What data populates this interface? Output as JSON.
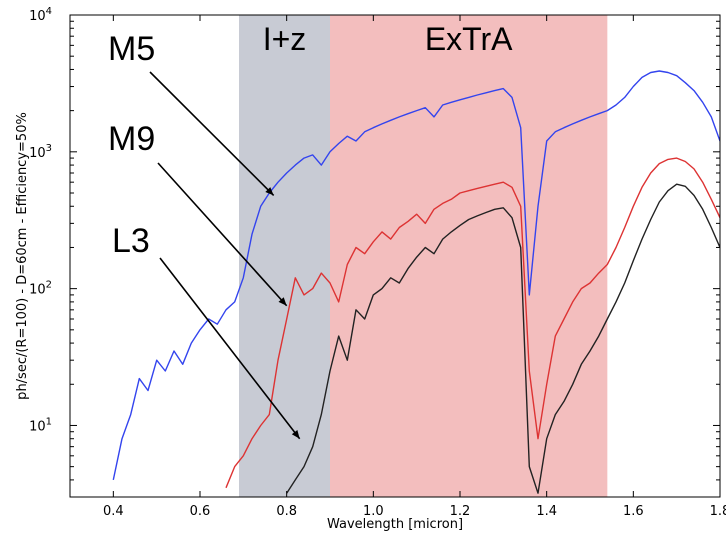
{
  "chart_data": {
    "type": "line",
    "title": "",
    "xlabel": "Wavelength [micron]",
    "ylabel": "ph/sec/(R=100) - D=60cm - Efficiency=50%",
    "xlim": [
      0.3,
      1.8
    ],
    "ylim": [
      3,
      10000
    ],
    "yscale": "log",
    "grid": false,
    "x_ticks": [
      "0.4",
      "0.6",
      "0.8",
      "1.0",
      "1.2",
      "1.4",
      "1.6",
      "1.8"
    ],
    "x_tick_values": [
      0.4,
      0.6,
      0.8,
      1.0,
      1.2,
      1.4,
      1.6,
      1.8
    ],
    "y_tick_values": [
      10,
      100,
      1000,
      10000
    ],
    "y_ticks": [
      {
        "base": "10",
        "exp": "1"
      },
      {
        "base": "10",
        "exp": "2"
      },
      {
        "base": "10",
        "exp": "3"
      },
      {
        "base": "10",
        "exp": "4"
      }
    ],
    "bands": [
      {
        "label": "I+z",
        "x": [
          0.69,
          0.9
        ],
        "color": "#9aa0b0"
      },
      {
        "label": "ExTrA",
        "x": [
          0.9,
          1.54
        ],
        "color": "#e98888"
      }
    ],
    "series": [
      {
        "name": "M5",
        "color": "#3344ee",
        "x": [
          0.4,
          0.42,
          0.44,
          0.46,
          0.48,
          0.5,
          0.52,
          0.54,
          0.56,
          0.58,
          0.6,
          0.62,
          0.64,
          0.66,
          0.68,
          0.7,
          0.72,
          0.74,
          0.76,
          0.78,
          0.8,
          0.82,
          0.84,
          0.86,
          0.88,
          0.9,
          0.92,
          0.94,
          0.96,
          0.98,
          1.0,
          1.02,
          1.04,
          1.06,
          1.08,
          1.1,
          1.12,
          1.14,
          1.16,
          1.18,
          1.2,
          1.22,
          1.24,
          1.26,
          1.28,
          1.3,
          1.32,
          1.34,
          1.36,
          1.38,
          1.4,
          1.42,
          1.44,
          1.46,
          1.48,
          1.5,
          1.52,
          1.54,
          1.56,
          1.58,
          1.6,
          1.62,
          1.64,
          1.66,
          1.68,
          1.7,
          1.72,
          1.74,
          1.76,
          1.78,
          1.8
        ],
        "values": [
          4,
          8,
          12,
          22,
          18,
          30,
          25,
          35,
          28,
          40,
          50,
          60,
          55,
          70,
          80,
          120,
          250,
          400,
          500,
          600,
          700,
          800,
          900,
          950,
          800,
          1000,
          1150,
          1300,
          1200,
          1400,
          1500,
          1600,
          1700,
          1800,
          1900,
          2000,
          2100,
          1800,
          2200,
          2300,
          2400,
          2500,
          2600,
          2700,
          2800,
          2900,
          2500,
          1500,
          90,
          400,
          1200,
          1400,
          1500,
          1600,
          1700,
          1800,
          1900,
          2000,
          2200,
          2500,
          3000,
          3500,
          3800,
          3900,
          3800,
          3600,
          3200,
          2800,
          2300,
          1800,
          1200
        ]
      },
      {
        "name": "M9",
        "color": "#dd3333",
        "x": [
          0.66,
          0.68,
          0.7,
          0.72,
          0.74,
          0.76,
          0.78,
          0.8,
          0.82,
          0.84,
          0.86,
          0.88,
          0.9,
          0.92,
          0.94,
          0.96,
          0.98,
          1.0,
          1.02,
          1.04,
          1.06,
          1.08,
          1.1,
          1.12,
          1.14,
          1.16,
          1.18,
          1.2,
          1.22,
          1.24,
          1.26,
          1.28,
          1.3,
          1.32,
          1.34,
          1.36,
          1.38,
          1.4,
          1.42,
          1.44,
          1.46,
          1.48,
          1.5,
          1.52,
          1.54,
          1.56,
          1.58,
          1.6,
          1.62,
          1.64,
          1.66,
          1.68,
          1.7,
          1.72,
          1.74,
          1.76,
          1.78,
          1.8
        ],
        "values": [
          3.5,
          5,
          6,
          8,
          10,
          12,
          30,
          60,
          120,
          90,
          100,
          130,
          110,
          80,
          150,
          200,
          180,
          220,
          260,
          230,
          280,
          310,
          350,
          300,
          380,
          420,
          450,
          500,
          520,
          540,
          560,
          580,
          600,
          550,
          400,
          25,
          8,
          20,
          45,
          60,
          80,
          100,
          110,
          130,
          150,
          200,
          280,
          400,
          550,
          700,
          820,
          880,
          900,
          850,
          750,
          600,
          450,
          330
        ]
      },
      {
        "name": "L3",
        "color": "#222222",
        "x": [
          0.8,
          0.82,
          0.84,
          0.86,
          0.88,
          0.9,
          0.92,
          0.94,
          0.96,
          0.98,
          1.0,
          1.02,
          1.04,
          1.06,
          1.08,
          1.1,
          1.12,
          1.14,
          1.16,
          1.18,
          1.2,
          1.22,
          1.24,
          1.26,
          1.28,
          1.3,
          1.32,
          1.34,
          1.36,
          1.38,
          1.4,
          1.42,
          1.44,
          1.46,
          1.48,
          1.5,
          1.52,
          1.54,
          1.56,
          1.58,
          1.6,
          1.62,
          1.64,
          1.66,
          1.68,
          1.7,
          1.72,
          1.74,
          1.76,
          1.78,
          1.8
        ],
        "values": [
          3.2,
          4,
          5,
          7,
          12,
          25,
          45,
          30,
          70,
          60,
          90,
          100,
          120,
          110,
          140,
          170,
          200,
          180,
          230,
          260,
          290,
          320,
          340,
          360,
          380,
          390,
          330,
          200,
          5,
          3.2,
          8,
          12,
          15,
          20,
          28,
          35,
          45,
          60,
          80,
          110,
          160,
          230,
          320,
          430,
          520,
          580,
          560,
          480,
          380,
          280,
          200
        ]
      }
    ],
    "annotations": [
      {
        "text": "M5",
        "series": "M5",
        "arrow_to": [
          0.77,
          480
        ]
      },
      {
        "text": "M9",
        "series": "M9",
        "arrow_to": [
          0.8,
          75
        ]
      },
      {
        "text": "L3",
        "series": "L3",
        "arrow_to": [
          0.83,
          8
        ]
      }
    ]
  }
}
